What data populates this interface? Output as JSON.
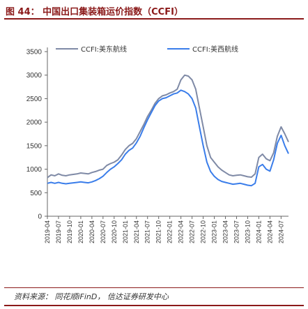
{
  "figure": {
    "title": "图 44： 中国出口集装箱运价指数（CCFI）",
    "source": "资料来源： 同花顺iFinD， 信达证券研发中心"
  },
  "chart_data": {
    "type": "line",
    "title": "",
    "xlabel": "",
    "ylabel": "",
    "ylim": [
      0,
      3500
    ],
    "yticks": [
      0,
      500,
      1000,
      1500,
      2000,
      2500,
      3000,
      3500
    ],
    "yticklabels": [
      "0",
      "500",
      "1000",
      "1500",
      "2000",
      "2500",
      "3000",
      "3500"
    ],
    "xlim": [
      "2019-04",
      "2024-09"
    ],
    "xticks": [
      "2019-04",
      "2019-07",
      "2019-10",
      "2020-01",
      "2020-04",
      "2020-07",
      "2020-10",
      "2021-01",
      "2021-04",
      "2021-07",
      "2021-10",
      "2022-01",
      "2022-04",
      "2022-07",
      "2022-10",
      "2023-01",
      "2023-04",
      "2023-07",
      "2023-10",
      "2024-01",
      "2024-04",
      "2024-07"
    ],
    "xticklabels": [
      "2019-04",
      "2019-07",
      "2019-10",
      "2020-01",
      "2020-04",
      "2020-07",
      "2020-10",
      "2021-01",
      "2021-04",
      "2021-07",
      "2021-10",
      "2022-01",
      "2022-04",
      "2022-07",
      "2022-10",
      "2023-01",
      "2023-04",
      "2023-07",
      "2023-10",
      "2024-01",
      "2024-04",
      "2024-07"
    ],
    "grid": false,
    "legend_position": "top",
    "series": [
      {
        "name": "CCFI:美东航线",
        "color": "#7f8aa6",
        "points": [
          [
            "2019-04",
            820
          ],
          [
            "2019-05",
            880
          ],
          [
            "2019-06",
            860
          ],
          [
            "2019-07",
            900
          ],
          [
            "2019-08",
            870
          ],
          [
            "2019-09",
            860
          ],
          [
            "2019-10",
            880
          ],
          [
            "2019-11",
            890
          ],
          [
            "2019-12",
            900
          ],
          [
            "2020-01",
            920
          ],
          [
            "2020-02",
            910
          ],
          [
            "2020-03",
            900
          ],
          [
            "2020-04",
            930
          ],
          [
            "2020-05",
            950
          ],
          [
            "2020-06",
            980
          ],
          [
            "2020-07",
            1000
          ],
          [
            "2020-08",
            1080
          ],
          [
            "2020-09",
            1120
          ],
          [
            "2020-10",
            1150
          ],
          [
            "2020-11",
            1200
          ],
          [
            "2020-12",
            1300
          ],
          [
            "2021-01",
            1420
          ],
          [
            "2021-02",
            1500
          ],
          [
            "2021-03",
            1550
          ],
          [
            "2021-04",
            1650
          ],
          [
            "2021-05",
            1800
          ],
          [
            "2021-06",
            1950
          ],
          [
            "2021-07",
            2120
          ],
          [
            "2021-08",
            2250
          ],
          [
            "2021-09",
            2400
          ],
          [
            "2021-10",
            2500
          ],
          [
            "2021-11",
            2560
          ],
          [
            "2021-12",
            2580
          ],
          [
            "2022-01",
            2620
          ],
          [
            "2022-02",
            2650
          ],
          [
            "2022-03",
            2700
          ],
          [
            "2022-04",
            2900
          ],
          [
            "2022-05",
            3000
          ],
          [
            "2022-06",
            2980
          ],
          [
            "2022-07",
            2900
          ],
          [
            "2022-08",
            2700
          ],
          [
            "2022-09",
            2300
          ],
          [
            "2022-10",
            1900
          ],
          [
            "2022-11",
            1500
          ],
          [
            "2022-12",
            1250
          ],
          [
            "2023-01",
            1150
          ],
          [
            "2023-02",
            1050
          ],
          [
            "2023-03",
            980
          ],
          [
            "2023-04",
            930
          ],
          [
            "2023-05",
            880
          ],
          [
            "2023-06",
            860
          ],
          [
            "2023-07",
            870
          ],
          [
            "2023-08",
            880
          ],
          [
            "2023-09",
            860
          ],
          [
            "2023-10",
            840
          ],
          [
            "2023-11",
            830
          ],
          [
            "2023-12",
            900
          ],
          [
            "2024-01",
            1250
          ],
          [
            "2024-02",
            1320
          ],
          [
            "2024-03",
            1220
          ],
          [
            "2024-04",
            1180
          ],
          [
            "2024-05",
            1350
          ],
          [
            "2024-06",
            1700
          ],
          [
            "2024-07",
            1900
          ],
          [
            "2024-08",
            1750
          ],
          [
            "2024-09",
            1580
          ]
        ]
      },
      {
        "name": "CCFI:美西航线",
        "color": "#3a7dea",
        "points": [
          [
            "2019-04",
            700
          ],
          [
            "2019-05",
            720
          ],
          [
            "2019-06",
            700
          ],
          [
            "2019-07",
            720
          ],
          [
            "2019-08",
            700
          ],
          [
            "2019-09",
            690
          ],
          [
            "2019-10",
            700
          ],
          [
            "2019-11",
            710
          ],
          [
            "2019-12",
            720
          ],
          [
            "2020-01",
            730
          ],
          [
            "2020-02",
            720
          ],
          [
            "2020-03",
            710
          ],
          [
            "2020-04",
            730
          ],
          [
            "2020-05",
            760
          ],
          [
            "2020-06",
            800
          ],
          [
            "2020-07",
            850
          ],
          [
            "2020-08",
            930
          ],
          [
            "2020-09",
            1000
          ],
          [
            "2020-10",
            1050
          ],
          [
            "2020-11",
            1120
          ],
          [
            "2020-12",
            1200
          ],
          [
            "2021-01",
            1320
          ],
          [
            "2021-02",
            1400
          ],
          [
            "2021-03",
            1450
          ],
          [
            "2021-04",
            1560
          ],
          [
            "2021-05",
            1700
          ],
          [
            "2021-06",
            1880
          ],
          [
            "2021-07",
            2050
          ],
          [
            "2021-08",
            2200
          ],
          [
            "2021-09",
            2350
          ],
          [
            "2021-10",
            2450
          ],
          [
            "2021-11",
            2500
          ],
          [
            "2021-12",
            2520
          ],
          [
            "2022-01",
            2560
          ],
          [
            "2022-02",
            2600
          ],
          [
            "2022-03",
            2620
          ],
          [
            "2022-04",
            2680
          ],
          [
            "2022-05",
            2650
          ],
          [
            "2022-06",
            2600
          ],
          [
            "2022-07",
            2500
          ],
          [
            "2022-08",
            2300
          ],
          [
            "2022-09",
            1900
          ],
          [
            "2022-10",
            1500
          ],
          [
            "2022-11",
            1150
          ],
          [
            "2022-12",
            950
          ],
          [
            "2023-01",
            850
          ],
          [
            "2023-02",
            780
          ],
          [
            "2023-03",
            740
          ],
          [
            "2023-04",
            720
          ],
          [
            "2023-05",
            700
          ],
          [
            "2023-06",
            680
          ],
          [
            "2023-07",
            690
          ],
          [
            "2023-08",
            700
          ],
          [
            "2023-09",
            680
          ],
          [
            "2023-10",
            660
          ],
          [
            "2023-11",
            650
          ],
          [
            "2023-12",
            700
          ],
          [
            "2024-01",
            1050
          ],
          [
            "2024-02",
            1100
          ],
          [
            "2024-03",
            1000
          ],
          [
            "2024-04",
            960
          ],
          [
            "2024-05",
            1200
          ],
          [
            "2024-06",
            1550
          ],
          [
            "2024-07",
            1720
          ],
          [
            "2024-08",
            1500
          ],
          [
            "2024-09",
            1330
          ]
        ]
      }
    ]
  }
}
